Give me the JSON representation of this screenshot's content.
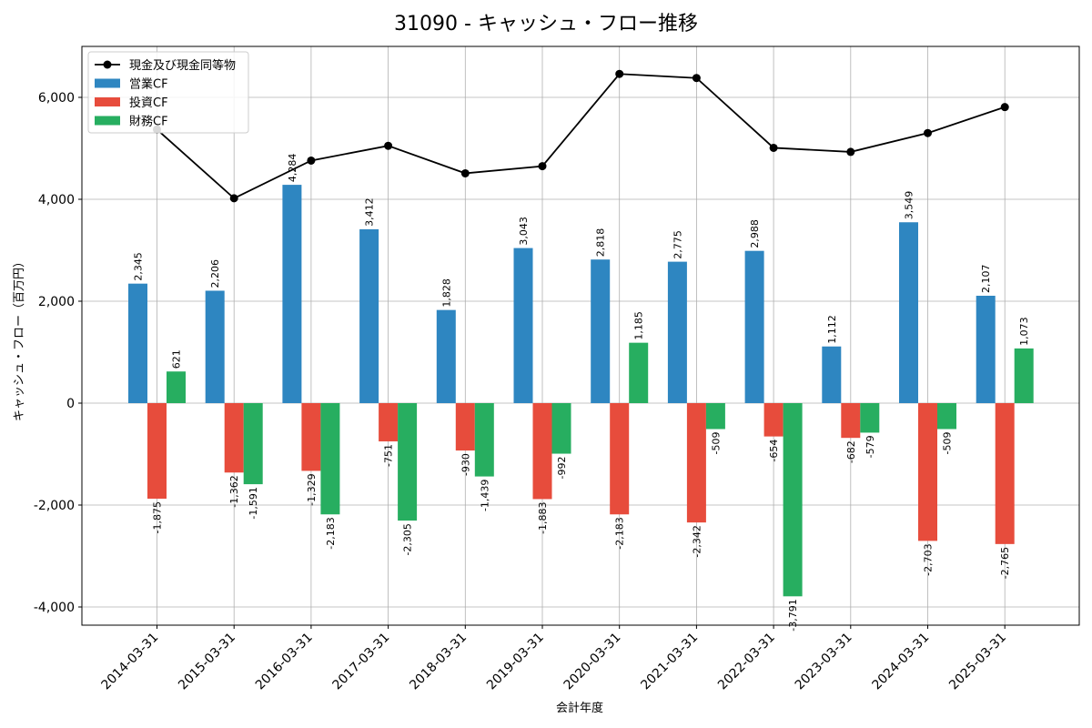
{
  "chart_data": {
    "type": "bar",
    "title": "31090 - キャッシュ・フロー推移",
    "xlabel": "会計年度",
    "ylabel": "キャッシュ・フロー（百万円）",
    "ylim": [
      -4300,
      7000
    ],
    "yticks": [
      -4000,
      -2000,
      0,
      2000,
      4000,
      6000
    ],
    "ytick_labels": [
      "-4,000",
      "-2,000",
      "0",
      "2,000",
      "4,000",
      "6,000"
    ],
    "grid": true,
    "legend_position": "top-left",
    "categories": [
      "2014-03-31",
      "2015-03-31",
      "2016-03-31",
      "2017-03-31",
      "2018-03-31",
      "2019-03-31",
      "2020-03-31",
      "2021-03-31",
      "2022-03-31",
      "2023-03-31",
      "2024-03-31",
      "2025-03-31"
    ],
    "series": [
      {
        "name": "営業CF",
        "type": "bar",
        "color": "#2e86c1",
        "values": [
          2345,
          2206,
          4284,
          3412,
          1828,
          3043,
          2818,
          2775,
          2988,
          1112,
          3549,
          2107
        ],
        "labels": [
          "2,345",
          "2,206",
          "4,284",
          "3,412",
          "1,828",
          "3,043",
          "2,818",
          "2,775",
          "2,988",
          "1,112",
          "3,549",
          "2,107"
        ]
      },
      {
        "name": "投資CF",
        "type": "bar",
        "color": "#e74c3c",
        "values": [
          -1875,
          -1362,
          -1329,
          -751,
          -930,
          -1883,
          -2183,
          -2342,
          -654,
          -682,
          -2703,
          -2765
        ],
        "labels": [
          "-1,875",
          "-1,362",
          "-1,329",
          "-751",
          "-930",
          "-1,883",
          "-2,183",
          "-2,342",
          "-654",
          "-682",
          "-2,703",
          "-2,765"
        ]
      },
      {
        "name": "財務CF",
        "type": "bar",
        "color": "#27ae60",
        "values": [
          621,
          -1591,
          -2183,
          -2305,
          -1439,
          -992,
          1185,
          -509,
          -3791,
          -579,
          -509,
          1073
        ],
        "labels": [
          "621",
          "-1,591",
          "-2,183",
          "-2,305",
          "-1,439",
          "-992",
          "1,185",
          "-509",
          "-3,791",
          "-579",
          "-509",
          "1,073"
        ]
      }
    ],
    "line_series": {
      "name": "現金及び現金同等物",
      "type": "line",
      "color": "#000000",
      "values": [
        5370,
        4020,
        4760,
        5050,
        4510,
        4650,
        6460,
        6380,
        5010,
        4930,
        5300,
        5810
      ]
    }
  }
}
